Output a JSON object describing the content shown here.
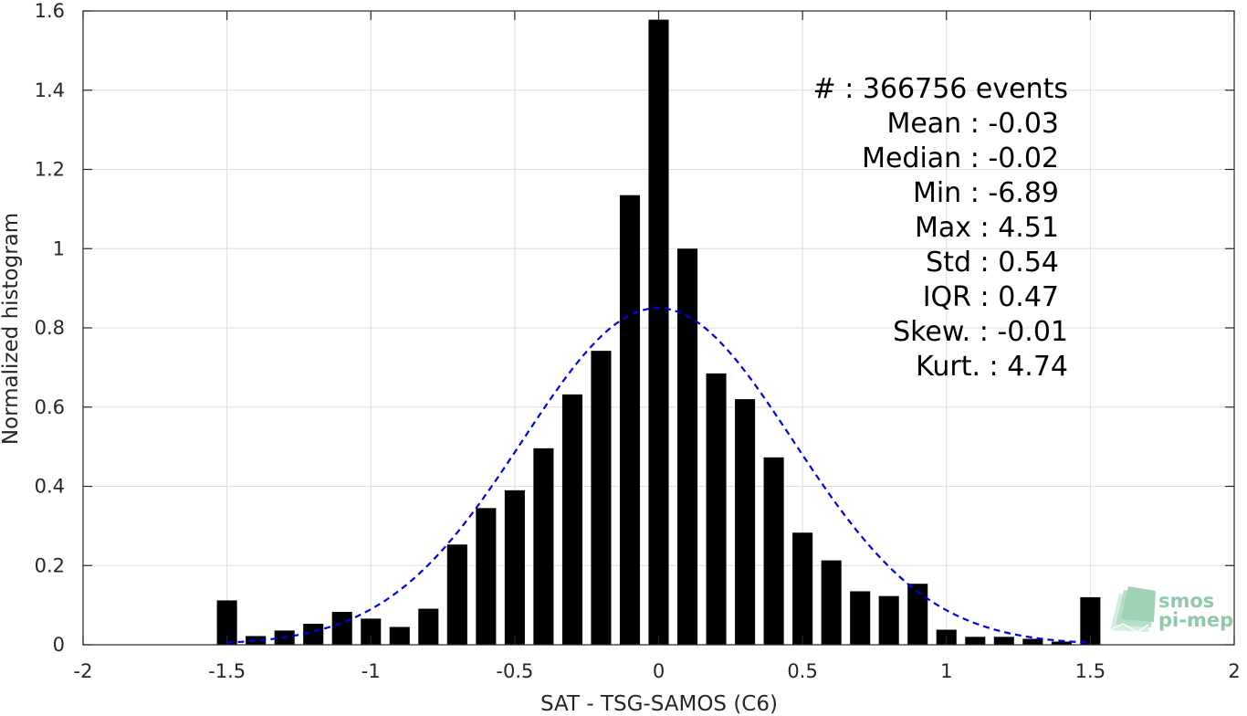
{
  "chart_data": {
    "type": "bar",
    "xlabel": "SAT - TSG-SAMOS (C6)",
    "ylabel": "Normalized histogram",
    "xlim": [
      -2,
      2
    ],
    "ylim": [
      0,
      1.6
    ],
    "xticks": [
      -2,
      -1.5,
      -1,
      -0.5,
      0,
      0.5,
      1,
      1.5,
      2
    ],
    "xtick_labels": [
      "-2",
      "-1.5",
      "-1",
      "-0.5",
      "0",
      "0.5",
      "1",
      "1.5",
      "2"
    ],
    "yticks": [
      0,
      0.2,
      0.4,
      0.6,
      0.8,
      1,
      1.2,
      1.4,
      1.6
    ],
    "ytick_labels": [
      "0",
      "0.2",
      "0.4",
      "0.6",
      "0.8",
      "1",
      "1.2",
      "1.4",
      "1.6"
    ],
    "grid": true,
    "bar_color": "#000000",
    "x": [
      -1.5,
      -1.4,
      -1.3,
      -1.2,
      -1.1,
      -1.0,
      -0.9,
      -0.8,
      -0.7,
      -0.6,
      -0.5,
      -0.4,
      -0.3,
      -0.2,
      -0.1,
      0.0,
      0.1,
      0.2,
      0.3,
      0.4,
      0.5,
      0.6,
      0.7,
      0.8,
      0.9,
      1.0,
      1.1,
      1.2,
      1.3,
      1.4,
      1.5
    ],
    "values": [
      0.112,
      0.022,
      0.036,
      0.053,
      0.083,
      0.066,
      0.045,
      0.091,
      0.253,
      0.345,
      0.39,
      0.496,
      0.632,
      0.742,
      1.135,
      1.578,
      1.0,
      0.685,
      0.62,
      0.473,
      0.283,
      0.213,
      0.135,
      0.123,
      0.154,
      0.038,
      0.02,
      0.02,
      0.015,
      0.008,
      0.12
    ],
    "gaussian_fit": {
      "mean": -0.003,
      "std": 0.47,
      "peak": 0.85,
      "color": "#0000e6",
      "style": "dashed",
      "x_range": [
        -1.5,
        1.5
      ]
    },
    "stats": [
      {
        "label": "#  ",
        "value": ": 366756 events"
      },
      {
        "label": "Mean ",
        "value": ": -0.03"
      },
      {
        "label": "Median ",
        "value": ": -0.02"
      },
      {
        "label": "Min ",
        "value": ": -6.89"
      },
      {
        "label": "Max ",
        "value": ": 4.51"
      },
      {
        "label": "Std ",
        "value": ": 0.54"
      },
      {
        "label": "IQR ",
        "value": ": 0.47"
      },
      {
        "label": "Skew. ",
        "value": ": -0.01"
      },
      {
        "label": "Kurt. ",
        "value": ": 4.74"
      }
    ]
  },
  "logo": {
    "line1": "smos",
    "line2": "pi-mep",
    "color": "#8fc9a8"
  }
}
